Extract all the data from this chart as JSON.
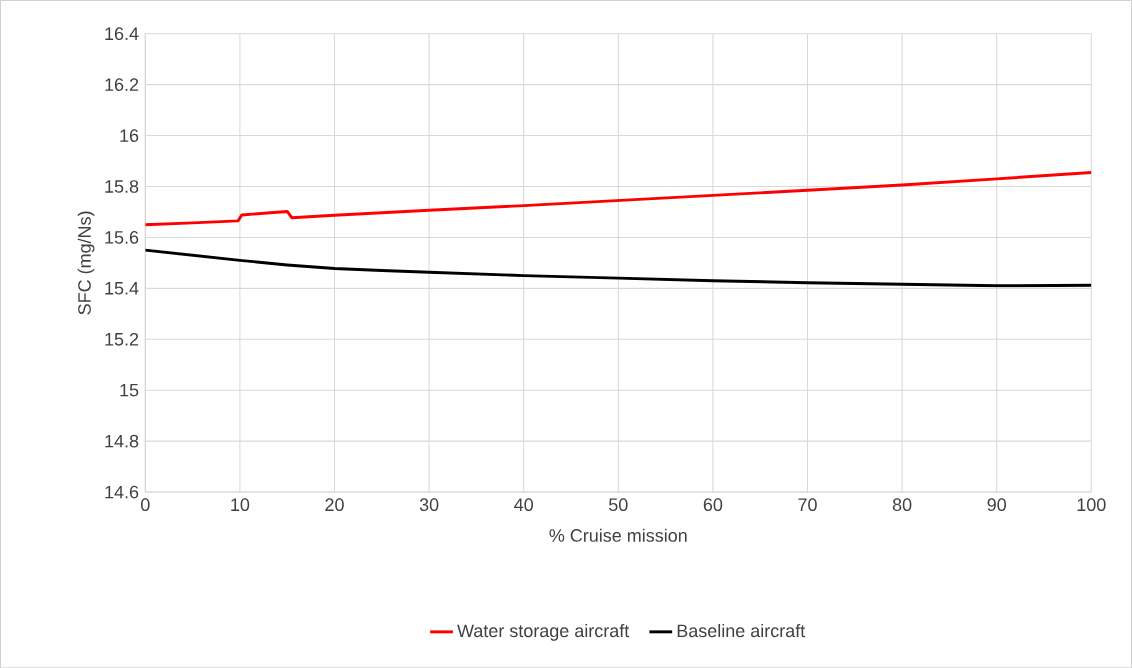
{
  "chart_data": {
    "type": "line",
    "xlabel": "% Cruise mission",
    "ylabel": "SFC (mg/Ns)",
    "series": [
      {
        "name": "Water storage aircraft",
        "color": "#ff0000",
        "x": [
          0,
          5,
          9.8,
          10.2,
          15,
          15.5,
          20,
          30,
          40,
          50,
          60,
          70,
          80,
          90,
          100
        ],
        "values": [
          15.65,
          15.657,
          15.665,
          15.688,
          15.702,
          15.677,
          15.687,
          15.707,
          15.725,
          15.745,
          15.765,
          15.785,
          15.806,
          15.83,
          15.855
        ]
      },
      {
        "name": "Baseline aircraft",
        "color": "#000000",
        "x": [
          0,
          5,
          10,
          15,
          20,
          25,
          30,
          40,
          50,
          60,
          70,
          80,
          90,
          100
        ],
        "values": [
          15.55,
          15.53,
          15.51,
          15.492,
          15.478,
          15.47,
          15.463,
          15.45,
          15.44,
          15.43,
          15.422,
          15.416,
          15.41,
          15.412
        ]
      }
    ],
    "xlim": [
      0,
      100
    ],
    "ylim": [
      14.6,
      16.4
    ],
    "xticks": [
      0,
      10,
      20,
      30,
      40,
      50,
      60,
      70,
      80,
      90,
      100
    ],
    "yticks": [
      14.6,
      14.8,
      15,
      15.2,
      15.4,
      15.6,
      15.8,
      16,
      16.2,
      16.4
    ],
    "grid": true,
    "legend": "bottom",
    "marker": "none",
    "line_style": "solid"
  }
}
